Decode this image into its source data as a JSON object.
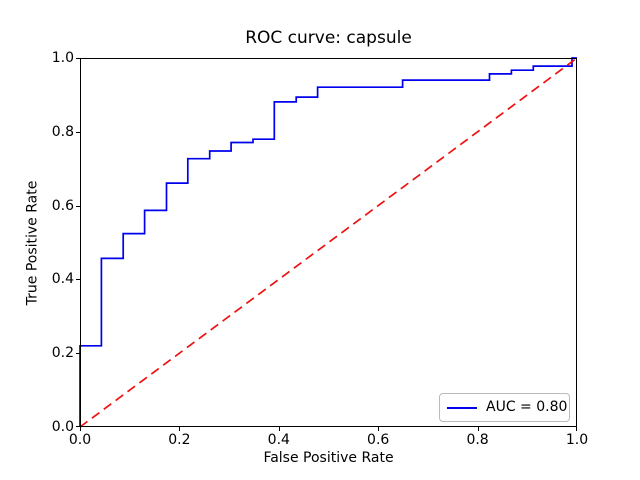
{
  "figure": {
    "title": "ROC curve: capsule",
    "xlabel": "False Positive Rate",
    "ylabel": "True Positive Rate",
    "legend_label": "AUC = 0.80"
  },
  "colors": {
    "curve_blue": "#0000ee",
    "chance_red": "#ee1111",
    "axis_black": "#000000",
    "legend_border": "#bbbbbb",
    "background": "#ffffff"
  },
  "chart_data": {
    "type": "line",
    "subtype": "roc_step_curve",
    "title": "ROC curve: capsule",
    "xlabel": "False Positive Rate",
    "ylabel": "True Positive Rate",
    "xlim": [
      0.0,
      1.0
    ],
    "ylim": [
      0.0,
      1.0
    ],
    "xticks": [
      "0.0",
      "0.2",
      "0.4",
      "0.6",
      "0.8",
      "1.0"
    ],
    "yticks": [
      "0.0",
      "0.2",
      "0.4",
      "0.6",
      "0.8",
      "1.0"
    ],
    "grid": false,
    "auc": 0.8,
    "legend": {
      "position": "lower right",
      "entries": [
        {
          "label": "AUC = 0.80",
          "color": "#0000ee",
          "style": "solid"
        }
      ]
    },
    "series": [
      {
        "name": "roc-curve",
        "color": "#0000ee",
        "style": "solid",
        "points": [
          [
            0.0,
            0.0
          ],
          [
            0.0,
            0.22
          ],
          [
            0.043,
            0.22
          ],
          [
            0.043,
            0.457
          ],
          [
            0.087,
            0.457
          ],
          [
            0.087,
            0.524
          ],
          [
            0.13,
            0.524
          ],
          [
            0.13,
            0.587
          ],
          [
            0.174,
            0.587
          ],
          [
            0.174,
            0.661
          ],
          [
            0.217,
            0.661
          ],
          [
            0.217,
            0.727
          ],
          [
            0.261,
            0.727
          ],
          [
            0.261,
            0.748
          ],
          [
            0.304,
            0.748
          ],
          [
            0.304,
            0.771
          ],
          [
            0.348,
            0.771
          ],
          [
            0.348,
            0.78
          ],
          [
            0.391,
            0.78
          ],
          [
            0.391,
            0.881
          ],
          [
            0.435,
            0.881
          ],
          [
            0.435,
            0.894
          ],
          [
            0.478,
            0.894
          ],
          [
            0.478,
            0.921
          ],
          [
            0.649,
            0.921
          ],
          [
            0.649,
            0.94
          ],
          [
            0.824,
            0.94
          ],
          [
            0.824,
            0.957
          ],
          [
            0.868,
            0.957
          ],
          [
            0.868,
            0.967
          ],
          [
            0.912,
            0.967
          ],
          [
            0.912,
            0.978
          ],
          [
            0.99,
            0.978
          ],
          [
            0.99,
            1.0
          ],
          [
            1.0,
            1.0
          ]
        ]
      },
      {
        "name": "chance-diagonal",
        "color": "#ee1111",
        "style": "dashed",
        "points": [
          [
            0.0,
            0.0
          ],
          [
            1.0,
            1.0
          ]
        ]
      }
    ]
  }
}
